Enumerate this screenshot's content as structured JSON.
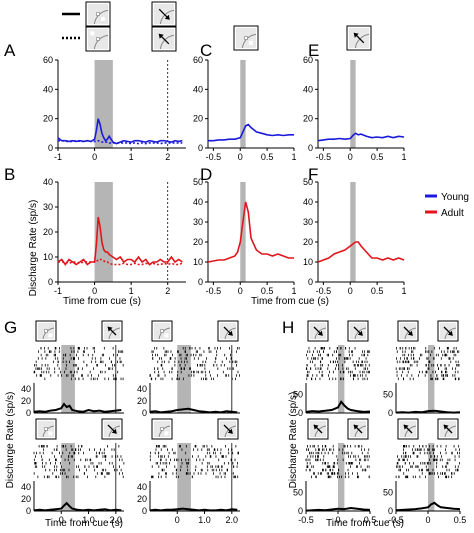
{
  "figure": {
    "labels": [
      "A",
      "B",
      "C",
      "D",
      "E",
      "F",
      "G",
      "H"
    ],
    "ylabel_main": "Discharge Rate (sp/s)",
    "ylabel_rasters": "Discharge Rate (sp/s)",
    "xlabel_main": "Time from cue (s)",
    "xlabel_rasters": "Time from cue (s)",
    "legend": [
      {
        "label": "Young",
        "color": "#1a1adb"
      },
      {
        "label": "Adult",
        "color": "#e0161c"
      }
    ],
    "line_styles": [
      "solid",
      "dotted"
    ],
    "colors": {
      "young": "#1a1adb",
      "adult": "#e0161c",
      "cue_shade": "#b5b5b5",
      "raster": "#000000"
    },
    "icons": [
      "cue-inside-receptive-field-icon",
      "cue-outside-receptive-field-icon",
      "saccade-toward-icon",
      "saccade-away-icon"
    ]
  },
  "chart_data": [
    {
      "panel": "A",
      "type": "line",
      "group": "Young",
      "x": [
        -1.0,
        -0.9,
        -0.8,
        -0.7,
        -0.6,
        -0.5,
        -0.4,
        -0.3,
        -0.2,
        -0.1,
        0.0,
        0.05,
        0.1,
        0.15,
        0.2,
        0.25,
        0.3,
        0.35,
        0.4,
        0.5,
        0.6,
        0.7,
        0.8,
        0.9,
        1.0,
        1.1,
        1.2,
        1.3,
        1.4,
        1.5,
        1.6,
        1.7,
        1.8,
        1.9,
        2.0,
        2.1,
        2.2,
        2.3,
        2.4
      ],
      "series": [
        {
          "values": [
            7,
            5,
            5,
            4.5,
            5,
            4.5,
            5,
            4.5,
            5,
            4.5,
            6,
            12,
            20,
            16,
            10,
            7,
            5,
            6,
            8,
            4,
            3,
            4,
            5,
            4.5,
            4,
            5,
            5,
            4.5,
            4,
            5,
            4.5,
            4,
            5,
            5,
            4.5,
            4,
            5,
            4.5,
            5
          ]
        },
        {
          "values": [
            5,
            5,
            4.5,
            4.5,
            4.5,
            5,
            4.5,
            4.5,
            5,
            4.5,
            4.5,
            4.5,
            5,
            4.5,
            4,
            4,
            4,
            4,
            3.5,
            3.5,
            3.5,
            3.5,
            3.5,
            3.5,
            3,
            3.5,
            3,
            3.5,
            3,
            3.5,
            3.5,
            3.5,
            3,
            3.5,
            3.5,
            3.5,
            3.5,
            3.5,
            3.5
          ]
        }
      ],
      "xlim": [
        -1,
        2.5
      ],
      "ylim": [
        0,
        60
      ],
      "xticks": [
        -1,
        0,
        1,
        2
      ],
      "yticks": [
        0,
        20,
        40,
        60
      ],
      "shade": [
        0,
        0.5
      ],
      "vline": 2.0
    },
    {
      "panel": "B",
      "type": "line",
      "group": "Adult",
      "x": [
        -1.0,
        -0.9,
        -0.8,
        -0.7,
        -0.6,
        -0.5,
        -0.4,
        -0.3,
        -0.2,
        -0.1,
        0.0,
        0.05,
        0.1,
        0.15,
        0.2,
        0.25,
        0.3,
        0.35,
        0.4,
        0.5,
        0.6,
        0.7,
        0.8,
        0.9,
        1.0,
        1.1,
        1.2,
        1.3,
        1.4,
        1.5,
        1.6,
        1.7,
        1.8,
        1.9,
        2.0,
        2.1,
        2.2,
        2.3,
        2.4
      ],
      "series": [
        {
          "values": [
            8,
            9,
            7,
            9,
            8,
            7,
            8,
            9,
            7,
            8,
            8,
            15,
            26,
            22,
            16,
            13,
            12,
            12,
            11,
            10,
            9,
            10,
            8,
            9,
            9,
            8,
            10,
            8,
            9,
            7,
            8,
            8,
            9,
            8,
            8,
            10,
            8,
            9,
            8
          ]
        },
        {
          "values": [
            8,
            8,
            8,
            7.5,
            8,
            8,
            7.5,
            8,
            8,
            8,
            8,
            8,
            9,
            9,
            9,
            8.5,
            8,
            8,
            7.5,
            7,
            7,
            7,
            7.5,
            7,
            7,
            7.5,
            7,
            7,
            7.5,
            7,
            7.5,
            7,
            7,
            7.5,
            7,
            7.5,
            7,
            7,
            7.5
          ]
        }
      ],
      "xlim": [
        -1,
        2.5
      ],
      "ylim": [
        0,
        40
      ],
      "xticks": [
        -1,
        0,
        1,
        2
      ],
      "yticks": [
        0,
        10,
        20,
        30,
        40
      ],
      "shade": [
        0,
        0.5
      ],
      "vline": 2.0
    },
    {
      "panel": "C",
      "type": "line",
      "group": "Young",
      "x": [
        -0.6,
        -0.5,
        -0.4,
        -0.3,
        -0.2,
        -0.1,
        0.0,
        0.05,
        0.1,
        0.15,
        0.2,
        0.3,
        0.4,
        0.5,
        0.6,
        0.7,
        0.8,
        0.9,
        1.0
      ],
      "values": [
        5,
        5,
        5.5,
        5.5,
        6,
        6,
        7,
        11,
        15,
        16,
        14,
        11,
        10,
        9,
        8.5,
        9,
        8.5,
        9,
        9
      ],
      "xlim": [
        -0.6,
        1.0
      ],
      "ylim": [
        0,
        60
      ],
      "xticks": [
        -0.5,
        0,
        0.5,
        1
      ],
      "yticks": [
        0,
        20,
        40,
        60
      ],
      "shade": [
        0,
        0.1
      ]
    },
    {
      "panel": "D",
      "type": "line",
      "group": "Adult",
      "x": [
        -0.6,
        -0.5,
        -0.4,
        -0.3,
        -0.2,
        -0.1,
        -0.05,
        0.0,
        0.05,
        0.1,
        0.15,
        0.2,
        0.3,
        0.4,
        0.5,
        0.6,
        0.7,
        0.8,
        0.9,
        1.0
      ],
      "values": [
        10,
        10.5,
        11,
        11,
        12,
        13,
        15,
        20,
        30,
        40,
        35,
        22,
        16,
        14,
        14,
        13,
        14,
        13,
        12,
        12
      ],
      "xlim": [
        -0.6,
        1.0
      ],
      "ylim": [
        0,
        50
      ],
      "xticks": [
        -0.5,
        0,
        0.5,
        1
      ],
      "yticks": [
        0,
        10,
        20,
        30,
        40,
        50
      ],
      "shade": [
        0,
        0.1
      ]
    },
    {
      "panel": "E",
      "type": "line",
      "group": "Young",
      "x": [
        -0.6,
        -0.5,
        -0.4,
        -0.3,
        -0.2,
        -0.1,
        0.0,
        0.05,
        0.1,
        0.15,
        0.2,
        0.3,
        0.4,
        0.5,
        0.6,
        0.7,
        0.8,
        0.9,
        1.0
      ],
      "values": [
        5,
        5.5,
        6,
        6,
        6.5,
        6,
        6.5,
        8.5,
        10,
        9,
        9.5,
        8,
        7,
        7.5,
        7,
        8,
        7,
        8,
        7.5
      ],
      "xlim": [
        -0.6,
        1.0
      ],
      "ylim": [
        0,
        60
      ],
      "xticks": [
        -0.5,
        0,
        0.5,
        1
      ],
      "yticks": [
        0,
        20,
        40,
        60
      ],
      "shade": [
        0,
        0.1
      ]
    },
    {
      "panel": "F",
      "type": "line",
      "group": "Adult",
      "x": [
        -0.6,
        -0.5,
        -0.4,
        -0.3,
        -0.2,
        -0.1,
        0.0,
        0.05,
        0.1,
        0.15,
        0.2,
        0.3,
        0.4,
        0.5,
        0.6,
        0.7,
        0.8,
        0.9,
        1.0
      ],
      "values": [
        10,
        11,
        12,
        14,
        15,
        16,
        18,
        19,
        20,
        20,
        18,
        15,
        12,
        12,
        11,
        12,
        11,
        12,
        11
      ],
      "xlim": [
        -0.6,
        1.0
      ],
      "ylim": [
        0,
        50
      ],
      "xticks": [
        -0.5,
        0,
        0.5,
        1
      ],
      "yticks": [
        0,
        10,
        20,
        30,
        40,
        50
      ],
      "shade": [
        0,
        0.1
      ]
    },
    {
      "panel": "G",
      "type": "raster",
      "xlim": [
        -1,
        2.3
      ],
      "xticks": [
        0,
        1.0,
        2.0
      ],
      "xticklabels": [
        "0",
        "1.0",
        "2.0"
      ],
      "shade": [
        0,
        0.5
      ],
      "vline": 2.0,
      "subplots": [
        {
          "x": [
            -1,
            -0.8,
            -0.6,
            -0.4,
            -0.2,
            0,
            0.1,
            0.2,
            0.3,
            0.4,
            0.6,
            0.8,
            1.0,
            1.2,
            1.4,
            1.6,
            1.8,
            2.0,
            2.2
          ],
          "values": [
            2,
            3,
            2,
            4,
            5,
            8,
            15,
            10,
            12,
            5,
            3,
            2,
            5,
            3,
            4,
            2,
            3,
            4,
            5
          ],
          "ylim": [
            0,
            50
          ],
          "yticks": [
            0,
            20,
            40
          ]
        },
        {
          "x": [
            -1,
            -0.8,
            -0.6,
            -0.4,
            -0.2,
            0,
            0.2,
            0.4,
            0.6,
            0.8,
            1.0,
            1.2,
            1.4,
            1.6,
            1.8,
            2.0,
            2.2
          ],
          "values": [
            2,
            3,
            1,
            2,
            3,
            5,
            6,
            7,
            5,
            3,
            2,
            1,
            2,
            1,
            3,
            2,
            1
          ],
          "ylim": [
            0,
            50
          ],
          "yticks": [
            0,
            20,
            40
          ]
        },
        {
          "x": [
            -1,
            -0.8,
            -0.6,
            -0.4,
            -0.2,
            0,
            0.1,
            0.2,
            0.3,
            0.4,
            0.6,
            0.8,
            1.0,
            1.2,
            1.4,
            1.6,
            1.8,
            2.0,
            2.2
          ],
          "values": [
            1,
            2,
            1,
            2,
            3,
            4,
            9,
            13,
            8,
            4,
            2,
            1,
            2,
            1,
            2,
            3,
            1,
            2,
            1
          ],
          "ylim": [
            0,
            50
          ],
          "yticks": [
            0,
            20,
            40
          ]
        },
        {
          "x": [
            -1,
            -0.8,
            -0.6,
            -0.4,
            -0.2,
            0,
            0.2,
            0.4,
            0.6,
            0.8,
            1.0,
            1.2,
            1.4,
            1.6,
            1.8,
            2.0,
            2.2
          ],
          "values": [
            1,
            2,
            1,
            2,
            2,
            3,
            4,
            3,
            2,
            1,
            2,
            1,
            1,
            2,
            1,
            3,
            2
          ],
          "ylim": [
            0,
            50
          ],
          "yticks": [
            0,
            20,
            40
          ]
        }
      ]
    },
    {
      "panel": "H",
      "type": "raster",
      "xlim": [
        -0.5,
        0.5
      ],
      "xticks": [
        -0.5,
        0,
        0.5
      ],
      "xticklabels": [
        "-0.5",
        "0",
        "0.5"
      ],
      "shade": [
        0,
        0.1
      ],
      "subplots": [
        {
          "x": [
            -0.5,
            -0.4,
            -0.3,
            -0.2,
            -0.1,
            0,
            0.05,
            0.1,
            0.15,
            0.2,
            0.3,
            0.4,
            0.5
          ],
          "values": [
            3,
            5,
            4,
            6,
            8,
            15,
            30,
            20,
            12,
            8,
            5,
            3,
            4
          ],
          "ylim": [
            0,
            80
          ],
          "yticks": [
            0,
            50
          ]
        },
        {
          "x": [
            -0.5,
            -0.4,
            -0.3,
            -0.2,
            -0.1,
            0,
            0.1,
            0.2,
            0.3,
            0.4,
            0.5
          ],
          "values": [
            1,
            2,
            1,
            3,
            2,
            5,
            6,
            4,
            2,
            1,
            2
          ],
          "ylim": [
            0,
            80
          ],
          "yticks": [
            0,
            50
          ]
        },
        {
          "x": [
            -0.5,
            -0.4,
            -0.3,
            -0.2,
            -0.1,
            0,
            0.1,
            0.2,
            0.3,
            0.4,
            0.5
          ],
          "values": [
            1,
            2,
            3,
            2,
            4,
            6,
            5,
            8,
            6,
            4,
            3
          ],
          "ylim": [
            0,
            80
          ],
          "yticks": [
            0,
            50
          ]
        },
        {
          "x": [
            -0.5,
            -0.4,
            -0.3,
            -0.2,
            -0.1,
            0,
            0.05,
            0.1,
            0.15,
            0.2,
            0.3,
            0.4,
            0.5
          ],
          "values": [
            2,
            3,
            4,
            5,
            7,
            10,
            18,
            22,
            15,
            10,
            8,
            6,
            5
          ],
          "ylim": [
            0,
            80
          ],
          "yticks": [
            0,
            50
          ]
        }
      ]
    }
  ]
}
